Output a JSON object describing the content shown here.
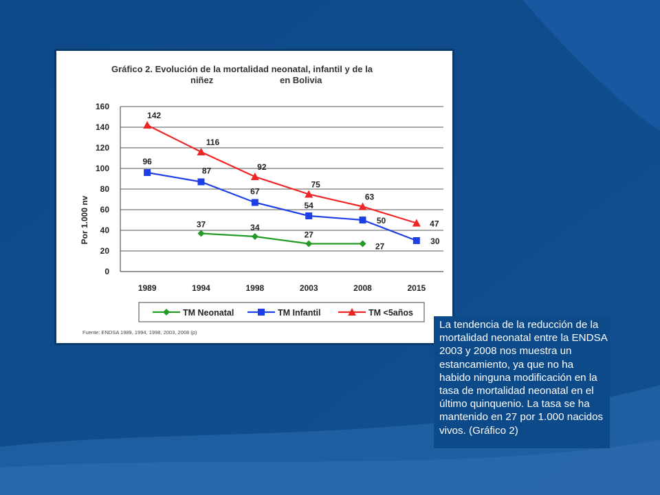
{
  "colors": {
    "background": "#0f4d8e",
    "neonatal": "#239a23",
    "infantil": "#1f3fe6",
    "under5": "#f02424"
  },
  "chart_data": {
    "type": "line",
    "title_line1": "Gráfico 2.  Evolución de la mortalidad neonatal, infantil y de la",
    "title_line2_left": "niñez",
    "title_line2_right": "en Bolivia",
    "ylabel": "Por 1.000 nv",
    "xlabel": "",
    "categories": [
      "1989",
      "1994",
      "1998",
      "2003",
      "2008",
      "2015"
    ],
    "ylim": [
      0,
      160
    ],
    "yticks": [
      0,
      20,
      40,
      60,
      80,
      100,
      120,
      140,
      160
    ],
    "grid": true,
    "legend_position": "bottom",
    "series": [
      {
        "name": "TM Neonatal",
        "marker": "diamond",
        "values": [
          null,
          37,
          34,
          27,
          27,
          null
        ],
        "labels": [
          null,
          "37",
          "34",
          "27",
          "27",
          null
        ]
      },
      {
        "name": "TM Infantil",
        "marker": "square",
        "values": [
          96,
          87,
          67,
          54,
          50,
          30
        ],
        "labels": [
          "96",
          "87",
          "67",
          "54",
          "50",
          "30"
        ]
      },
      {
        "name": "TM <5años",
        "marker": "triangle",
        "values": [
          142,
          116,
          92,
          75,
          63,
          47
        ],
        "labels": [
          "142",
          "116",
          "92",
          "75",
          "63",
          "47"
        ]
      }
    ],
    "source": "Fuente: ENDSA 1989, 1994, 1998, 2003, 2008 (p)"
  },
  "text_box": {
    "body": "La tendencia de la reducción de la mortalidad neonatal entre la ENDSA 2003  y 2008 nos muestra un estancamiento, ya que no ha habido ninguna modificación en la tasa de mortalidad neonatal en el último quinquenio. La tasa se ha mantenido en 27 por 1.000 nacidos vivos. (Gráfico 2)"
  }
}
